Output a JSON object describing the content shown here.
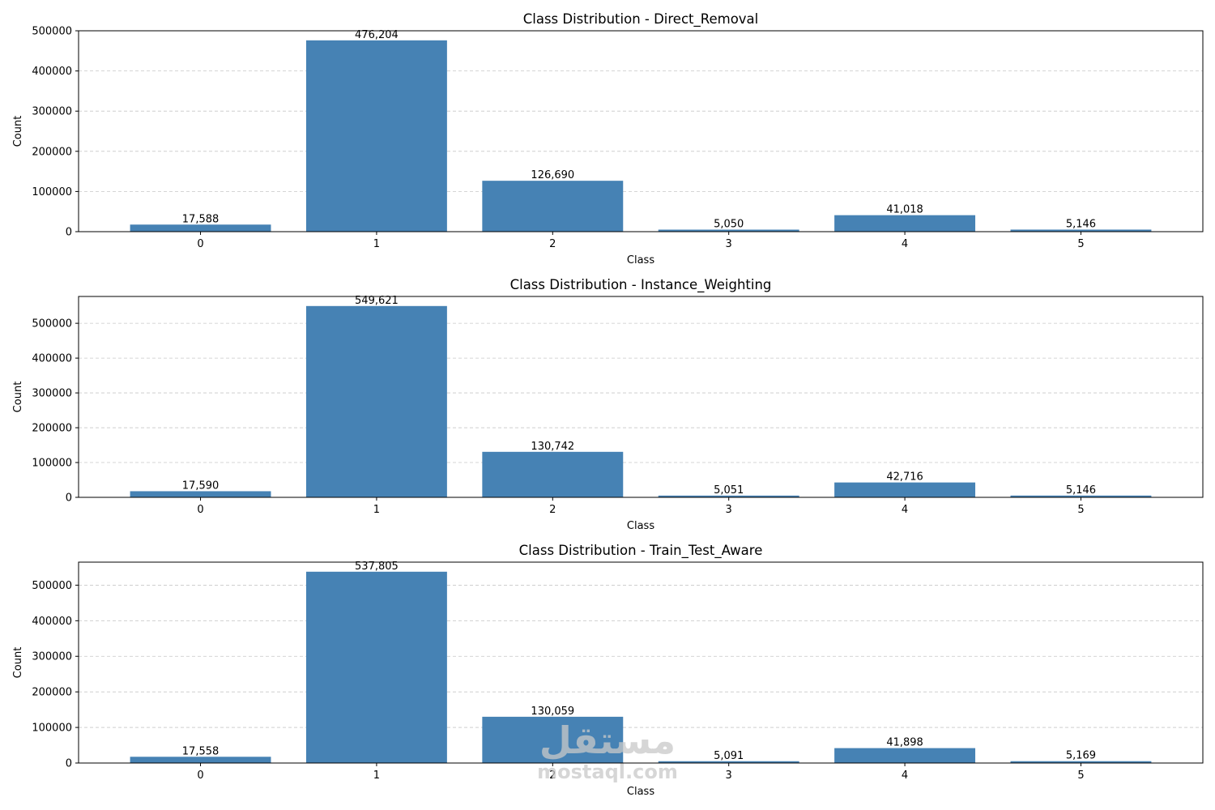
{
  "chart_data": [
    {
      "type": "bar",
      "title": "Class Distribution - Direct_Removal",
      "xlabel": "Class",
      "ylabel": "Count",
      "categories": [
        "0",
        "1",
        "2",
        "3",
        "4",
        "5"
      ],
      "values": [
        17588,
        476204,
        126690,
        5050,
        41018,
        5146
      ],
      "value_labels": [
        "17,588",
        "476,204",
        "126,690",
        "5,050",
        "41,018",
        "5,146"
      ],
      "yticks": [
        0,
        100000,
        200000,
        300000,
        400000,
        500000
      ],
      "ylim": [
        0,
        500000
      ],
      "grid": "y-dashed",
      "bar_color": "#4682b4"
    },
    {
      "type": "bar",
      "title": "Class Distribution - Instance_Weighting",
      "xlabel": "Class",
      "ylabel": "Count",
      "categories": [
        "0",
        "1",
        "2",
        "3",
        "4",
        "5"
      ],
      "values": [
        17590,
        549621,
        130742,
        5051,
        42716,
        5146
      ],
      "value_labels": [
        "17,590",
        "549,621",
        "130,742",
        "5,051",
        "42,716",
        "5,146"
      ],
      "yticks": [
        0,
        100000,
        200000,
        300000,
        400000,
        500000
      ],
      "ylim": [
        0,
        577100
      ],
      "grid": "y-dashed",
      "bar_color": "#4682b4"
    },
    {
      "type": "bar",
      "title": "Class Distribution - Train_Test_Aware",
      "xlabel": "Class",
      "ylabel": "Count",
      "categories": [
        "0",
        "1",
        "2",
        "3",
        "4",
        "5"
      ],
      "values": [
        17558,
        537805,
        130059,
        5091,
        41898,
        5169
      ],
      "value_labels": [
        "17,558",
        "537,805",
        "130,059",
        "5,091",
        "41,898",
        "5,169"
      ],
      "yticks": [
        0,
        100000,
        200000,
        300000,
        400000,
        500000
      ],
      "ylim": [
        0,
        564700
      ],
      "grid": "y-dashed",
      "bar_color": "#4682b4"
    }
  ],
  "watermark": {
    "logo": "مستقل",
    "url": "mostaql.com"
  }
}
